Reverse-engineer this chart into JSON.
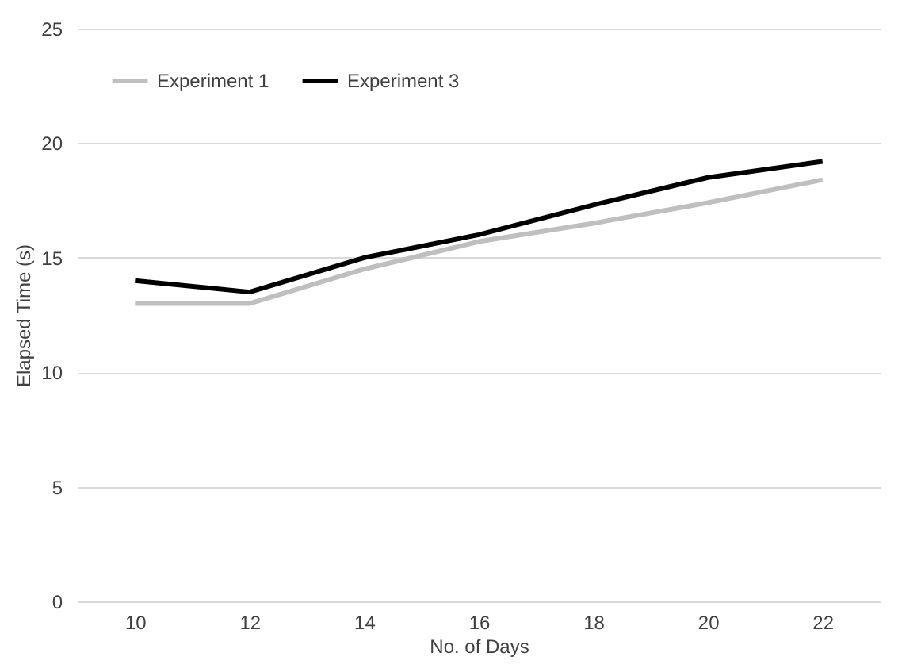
{
  "chart_data": {
    "type": "line",
    "xlabel": "No. of Days",
    "ylabel": "Elapsed Time (s)",
    "categories": [
      "10",
      "12",
      "14",
      "16",
      "18",
      "20",
      "22"
    ],
    "series": [
      {
        "name": "Experiment 1",
        "color": "#bfbfbf",
        "values": [
          13,
          13,
          14.5,
          15.7,
          16.5,
          17.4,
          18.4
        ]
      },
      {
        "name": "Experiment 3",
        "color": "#000000",
        "values": [
          14,
          13.5,
          15,
          16,
          17.3,
          18.5,
          19.2
        ]
      }
    ],
    "ylim": [
      0,
      25
    ],
    "yticks": [
      0,
      5,
      10,
      15,
      20,
      25
    ],
    "grid": "y",
    "legend": "top left",
    "marker": "none",
    "line_style": "solid"
  }
}
